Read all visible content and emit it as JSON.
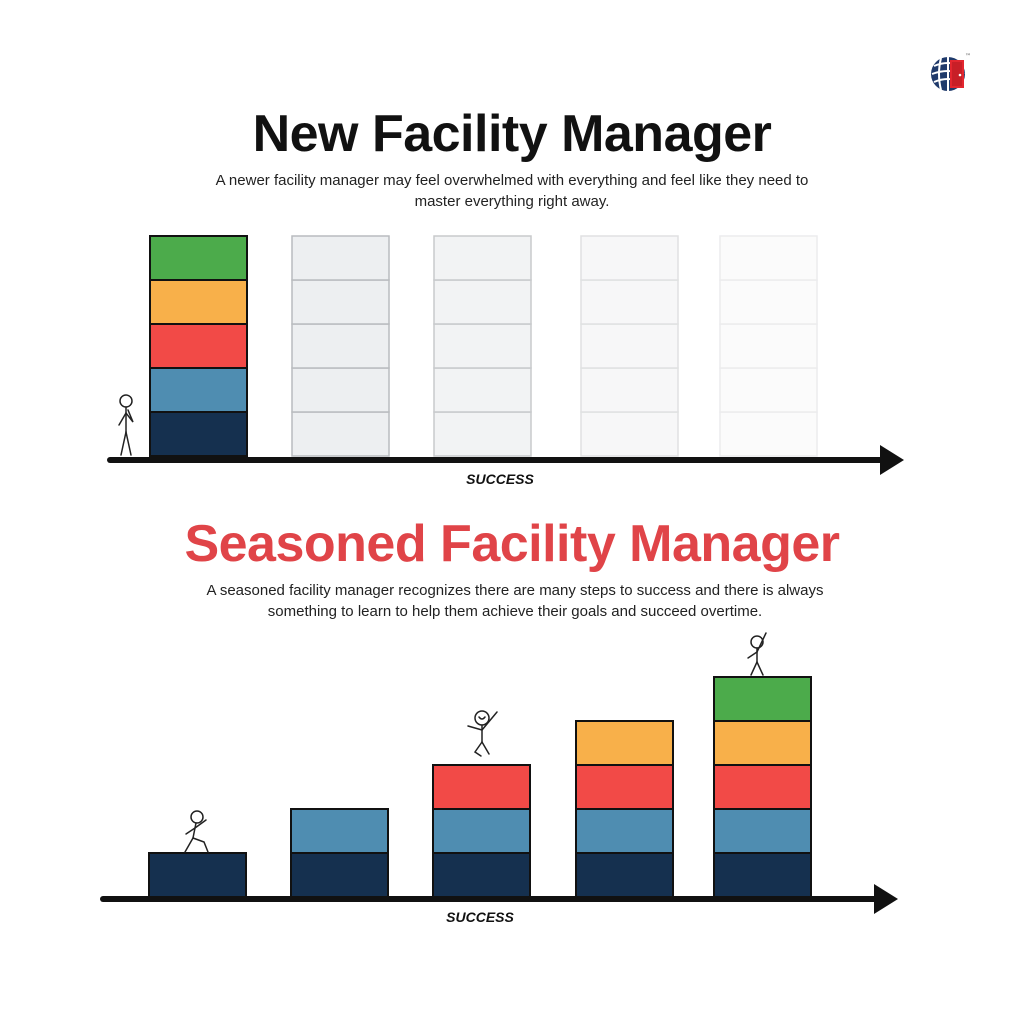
{
  "logo": {
    "icon": "globe-door-logo-icon",
    "trademark": "™"
  },
  "new_section": {
    "title": "New Facility Manager",
    "description": "A newer facility manager may feel overwhelmed with everything and feel like they need to master everything right away.",
    "axis_label": "SUCCESS",
    "stacks": [
      5,
      5,
      5,
      5,
      5
    ],
    "faded": [
      false,
      true,
      true,
      true,
      true
    ],
    "figure": "stick-figure-thinking-icon"
  },
  "seasoned_section": {
    "title": "Seasoned Facility Manager",
    "description": "A seasoned facility manager recognizes there are many steps to success and there is always something to learn to help them achieve their goals and succeed overtime.",
    "axis_label": "SUCCESS",
    "stacks": [
      1,
      2,
      3,
      4,
      5
    ],
    "figures": [
      "stick-figure-walking-icon",
      "stick-figure-jumping-icon",
      "stick-figure-celebrating-icon"
    ]
  },
  "colors": {
    "level_1": "#15304f",
    "level_2": "#4f8db1",
    "level_3": "#f24a47",
    "level_4": "#f8b04a",
    "level_5": "#4cab4b",
    "title_seasoned": "#e04448",
    "axis": "#111111"
  }
}
